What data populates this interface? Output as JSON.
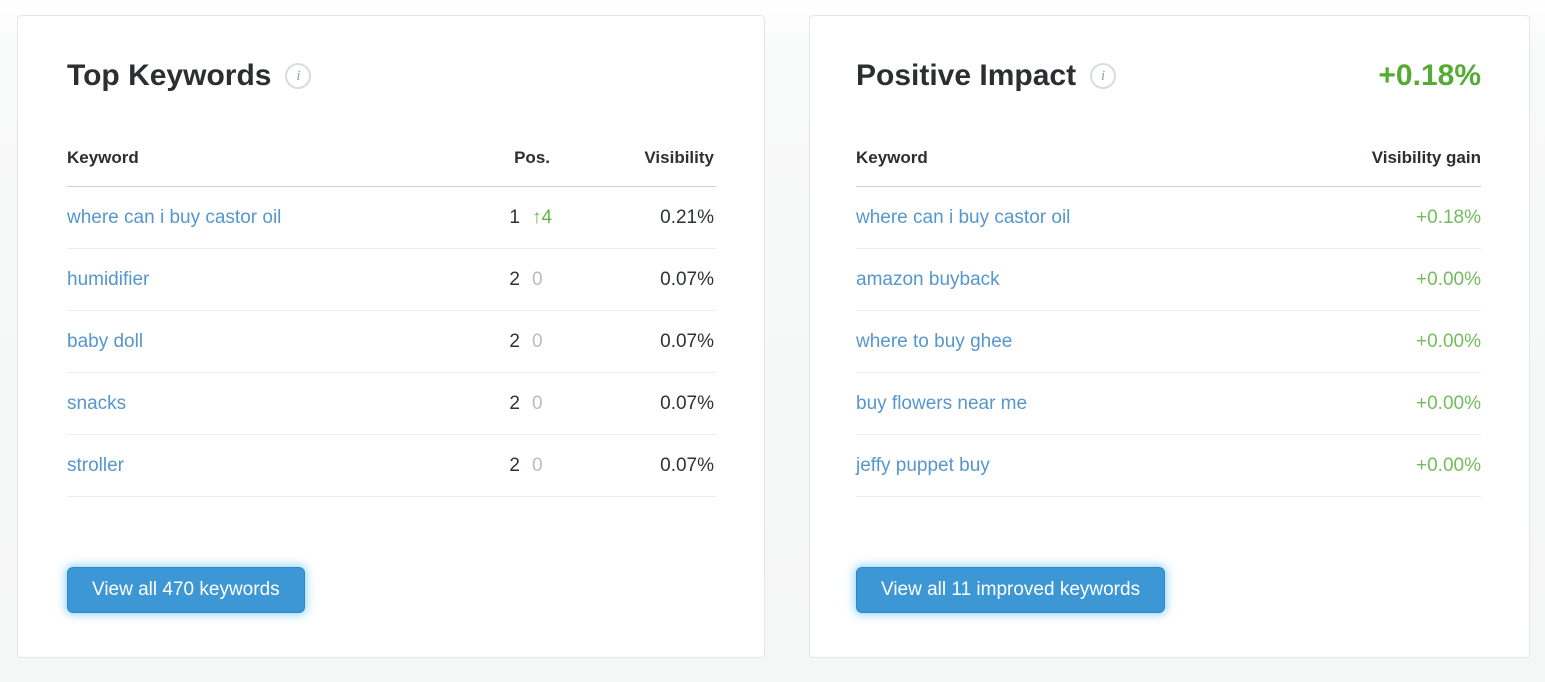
{
  "icons": {
    "info_glyph": "i",
    "arrow_up_glyph": "↑"
  },
  "colors": {
    "keyword_link_blue": "#5696ce",
    "positive_green_header": "#55ab33",
    "gain_green": "#72bc5b",
    "change_up_green": "#66b54a",
    "change_zero_gray": "#b9bdbe",
    "button_blue": "#3d97d5"
  },
  "cards": [
    {
      "title": "Top Keywords",
      "columns": [
        "Keyword",
        "Pos.",
        "Visibility"
      ],
      "rows": [
        {
          "keyword": "where can i buy castor oil",
          "pos": "1",
          "change": "4",
          "visibility": "0.21%"
        },
        {
          "keyword": "humidifier",
          "pos": "2",
          "change": "0",
          "visibility": "0.07%"
        },
        {
          "keyword": "baby doll",
          "pos": "2",
          "change": "0",
          "visibility": "0.07%"
        },
        {
          "keyword": "snacks",
          "pos": "2",
          "change": "0",
          "visibility": "0.07%"
        },
        {
          "keyword": "stroller",
          "pos": "2",
          "change": "0",
          "visibility": "0.07%"
        }
      ],
      "button_label": "View all 470 keywords"
    },
    {
      "title": "Positive Impact",
      "total_gain": "+0.18%",
      "columns": [
        "Keyword",
        "Visibility gain"
      ],
      "rows": [
        {
          "keyword": "where can i buy castor oil",
          "gain": "+0.18%"
        },
        {
          "keyword": "amazon buyback",
          "gain": "+0.00%"
        },
        {
          "keyword": "where to buy ghee",
          "gain": "+0.00%"
        },
        {
          "keyword": "buy flowers near me",
          "gain": "+0.00%"
        },
        {
          "keyword": "jeffy puppet buy",
          "gain": "+0.00%"
        }
      ],
      "button_label": "View all 11 improved keywords"
    }
  ]
}
